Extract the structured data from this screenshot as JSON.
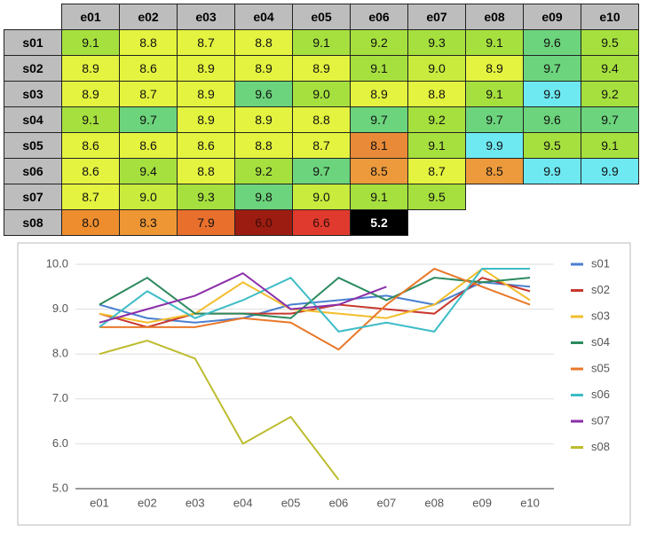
{
  "table": {
    "columns": [
      "e01",
      "e02",
      "e03",
      "e04",
      "e05",
      "e06",
      "e07",
      "e08",
      "e09",
      "e10"
    ],
    "rows": [
      {
        "label": "s01",
        "cells": [
          "9.1",
          "8.8",
          "8.7",
          "8.8",
          "9.1",
          "9.2",
          "9.3",
          "9.1",
          "9.6",
          "9.5"
        ],
        "colors": [
          "#a6e03e",
          "#e4f33f",
          "#e4f33f",
          "#e4f33f",
          "#a6e03e",
          "#a6e03e",
          "#a6e03e",
          "#a6e03e",
          "#6cd47c",
          "#a6e03e"
        ]
      },
      {
        "label": "s02",
        "cells": [
          "8.9",
          "8.6",
          "8.9",
          "8.9",
          "8.9",
          "9.1",
          "9.0",
          "8.9",
          "9.7",
          "9.4"
        ],
        "colors": [
          "#e4f33f",
          "#e4f33f",
          "#e4f33f",
          "#e4f33f",
          "#e4f33f",
          "#a6e03e",
          "#c8eb3e",
          "#e4f33f",
          "#6cd47c",
          "#a6e03e"
        ]
      },
      {
        "label": "s03",
        "cells": [
          "8.9",
          "8.7",
          "8.9",
          "9.6",
          "9.0",
          "8.9",
          "8.8",
          "9.1",
          "9.9",
          "9.2"
        ],
        "colors": [
          "#e4f33f",
          "#e4f33f",
          "#e4f33f",
          "#6cd47c",
          "#a6e03e",
          "#e4f33f",
          "#e4f33f",
          "#a6e03e",
          "#6ee9f2",
          "#a6e03e"
        ]
      },
      {
        "label": "s04",
        "cells": [
          "9.1",
          "9.7",
          "8.9",
          "8.9",
          "8.8",
          "9.7",
          "9.2",
          "9.7",
          "9.6",
          "9.7"
        ],
        "colors": [
          "#a6e03e",
          "#6cd47c",
          "#e4f33f",
          "#e4f33f",
          "#e4f33f",
          "#6cd47c",
          "#a6e03e",
          "#6cd47c",
          "#6cd47c",
          "#6cd47c"
        ]
      },
      {
        "label": "s05",
        "cells": [
          "8.6",
          "8.6",
          "8.6",
          "8.8",
          "8.7",
          "8.1",
          "9.1",
          "9.9",
          "9.5",
          "9.1"
        ],
        "colors": [
          "#e4f33f",
          "#e4f33f",
          "#e4f33f",
          "#e4f33f",
          "#e4f33f",
          "#e98a38",
          "#a6e03e",
          "#6ee9f2",
          "#a6e03e",
          "#a6e03e"
        ]
      },
      {
        "label": "s06",
        "cells": [
          "8.6",
          "9.4",
          "8.8",
          "9.2",
          "9.7",
          "8.5",
          "8.7",
          "8.5",
          "9.9",
          "9.9"
        ],
        "colors": [
          "#e4f33f",
          "#a6e03e",
          "#e4f33f",
          "#a6e03e",
          "#6cd47c",
          "#ec9a3c",
          "#e4f33f",
          "#ec9a3c",
          "#6ee9f2",
          "#6ee9f2"
        ]
      },
      {
        "label": "s07",
        "cells": [
          "8.7",
          "9.0",
          "9.3",
          "9.8",
          "9.0",
          "9.1",
          "9.5"
        ],
        "colors": [
          "#e4f33f",
          "#c8eb3e",
          "#a6e03e",
          "#6cd47c",
          "#c8eb3e",
          "#a6e03e",
          "#a6e03e"
        ]
      },
      {
        "label": "s08",
        "cells": [
          "8.0",
          "8.3",
          "7.9",
          "6.0",
          "6.6",
          "5.2"
        ],
        "colors": [
          "#ee8d2e",
          "#ee9634",
          "#e8702c",
          "#9c1c12",
          "#e03a2e",
          "#000000"
        ]
      }
    ]
  },
  "chart_data": {
    "type": "line",
    "categories": [
      "e01",
      "e02",
      "e03",
      "e04",
      "e05",
      "e06",
      "e07",
      "e08",
      "e09",
      "e10"
    ],
    "series": [
      {
        "name": "s01",
        "color": "#4a7fd0",
        "values": [
          9.1,
          8.8,
          8.7,
          8.8,
          9.1,
          9.2,
          9.3,
          9.1,
          9.6,
          9.5
        ]
      },
      {
        "name": "s02",
        "color": "#c8382e",
        "values": [
          8.9,
          8.6,
          8.9,
          8.9,
          8.9,
          9.1,
          9.0,
          8.9,
          9.7,
          9.4
        ]
      },
      {
        "name": "s03",
        "color": "#f2be2c",
        "values": [
          8.9,
          8.7,
          8.9,
          9.6,
          9.0,
          8.9,
          8.8,
          9.1,
          9.9,
          9.2
        ]
      },
      {
        "name": "s04",
        "color": "#2b8a5e",
        "values": [
          9.1,
          9.7,
          8.9,
          8.9,
          8.8,
          9.7,
          9.2,
          9.7,
          9.6,
          9.7
        ]
      },
      {
        "name": "s05",
        "color": "#e8782a",
        "values": [
          8.6,
          8.6,
          8.6,
          8.8,
          8.7,
          8.1,
          9.1,
          9.9,
          9.5,
          9.1
        ]
      },
      {
        "name": "s06",
        "color": "#3dbcc6",
        "values": [
          8.6,
          9.4,
          8.8,
          9.2,
          9.7,
          8.5,
          8.7,
          8.5,
          9.9,
          9.9
        ]
      },
      {
        "name": "s07",
        "color": "#8b2ea8",
        "values": [
          8.7,
          9.0,
          9.3,
          9.8,
          9.0,
          9.1,
          9.5,
          null,
          null,
          null
        ]
      },
      {
        "name": "s08",
        "color": "#bcbc2e",
        "values": [
          8.0,
          8.3,
          7.9,
          6.0,
          6.6,
          5.2,
          null,
          null,
          null,
          null
        ]
      }
    ],
    "ylim": [
      5,
      10
    ],
    "yticks": [
      {
        "value": 5,
        "label": "5.0"
      },
      {
        "value": 6,
        "label": "6.0"
      },
      {
        "value": 7,
        "label": "7.0"
      },
      {
        "value": 8,
        "label": "8.0"
      },
      {
        "value": 9,
        "label": "9.0"
      },
      {
        "value": 10,
        "label": "10.0"
      }
    ],
    "grid": true,
    "legend": "right"
  }
}
